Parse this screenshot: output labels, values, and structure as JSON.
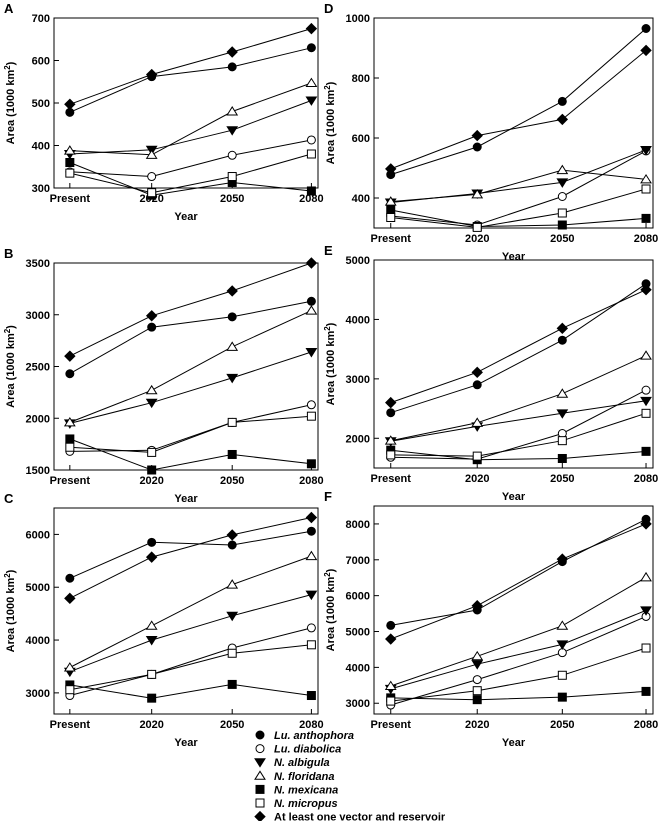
{
  "chart_data": [
    {
      "panel": "A",
      "type": "line",
      "x": [
        "Present",
        "2020",
        "2050",
        "2080"
      ],
      "xlabel": "Year",
      "ylabel": "Area (1000 km",
      "ylabel_sup": "2",
      "ylabel_end": ")",
      "ylim": [
        300,
        700
      ],
      "yticks": [
        300,
        400,
        500,
        600,
        700
      ],
      "series": [
        {
          "name": "Lu. anthophora",
          "values": [
            478,
            562,
            585,
            630
          ]
        },
        {
          "name": "Lu. diabolica",
          "values": [
            338,
            327,
            377,
            413
          ]
        },
        {
          "name": "N. albigula",
          "values": [
            380,
            390,
            436,
            506
          ]
        },
        {
          "name": "N. floridana",
          "values": [
            388,
            378,
            480,
            547
          ]
        },
        {
          "name": "N. mexicana",
          "values": [
            360,
            283,
            313,
            293
          ]
        },
        {
          "name": "N. micropus",
          "values": [
            335,
            289,
            327,
            380
          ]
        },
        {
          "name": "At least one vector and reservoir",
          "values": [
            497,
            567,
            620,
            675
          ]
        }
      ]
    },
    {
      "panel": "B",
      "type": "line",
      "x": [
        "Present",
        "2020",
        "2050",
        "2080"
      ],
      "xlabel": "Year",
      "ylabel": "Area (1000 km",
      "ylabel_sup": "2",
      "ylabel_end": ")",
      "ylim": [
        1500,
        3500
      ],
      "yticks": [
        1500,
        2000,
        2500,
        3000,
        3500
      ],
      "series": [
        {
          "name": "Lu. anthophora",
          "values": [
            2430,
            2880,
            2980,
            3130
          ]
        },
        {
          "name": "Lu. diabolica",
          "values": [
            1680,
            1690,
            1960,
            2130
          ]
        },
        {
          "name": "N. albigula",
          "values": [
            1950,
            2150,
            2390,
            2640
          ]
        },
        {
          "name": "N. floridana",
          "values": [
            1960,
            2270,
            2690,
            3040
          ]
        },
        {
          "name": "N. mexicana",
          "values": [
            1800,
            1500,
            1650,
            1560
          ]
        },
        {
          "name": "N. micropus",
          "values": [
            1720,
            1670,
            1960,
            2020
          ]
        },
        {
          "name": "At least one vector and reservoir",
          "values": [
            2600,
            2990,
            3230,
            3500
          ]
        }
      ]
    },
    {
      "panel": "C",
      "type": "line",
      "x": [
        "Present",
        "2020",
        "2050",
        "2080"
      ],
      "xlabel": "Year",
      "ylabel": "Area (1000 km",
      "ylabel_sup": "2",
      "ylabel_end": ")",
      "ylim": [
        2600,
        6500
      ],
      "yticks": [
        3000,
        4000,
        5000,
        6000
      ],
      "series": [
        {
          "name": "Lu. anthophora",
          "values": [
            5170,
            5850,
            5800,
            6060
          ]
        },
        {
          "name": "Lu. diabolica",
          "values": [
            2950,
            3350,
            3850,
            4230
          ]
        },
        {
          "name": "N. albigula",
          "values": [
            3400,
            4000,
            4460,
            4860
          ]
        },
        {
          "name": "N. floridana",
          "values": [
            3480,
            4270,
            5050,
            5590
          ]
        },
        {
          "name": "N. mexicana",
          "values": [
            3150,
            2900,
            3160,
            2950
          ]
        },
        {
          "name": "N. micropus",
          "values": [
            3060,
            3350,
            3750,
            3910
          ]
        },
        {
          "name": "At least one vector and reservoir",
          "values": [
            4790,
            5570,
            5990,
            6320
          ]
        }
      ]
    },
    {
      "panel": "D",
      "type": "line",
      "x": [
        "Present",
        "2020",
        "2050",
        "2080"
      ],
      "xlabel": "Year",
      "ylabel": "Area (1000 km",
      "ylabel_sup": "2",
      "ylabel_end": ")",
      "ylim": [
        300,
        1000
      ],
      "yticks": [
        400,
        600,
        800,
        1000
      ],
      "series": [
        {
          "name": "Lu. anthophora",
          "values": [
            478,
            570,
            722,
            965
          ]
        },
        {
          "name": "Lu. diabolica",
          "values": [
            340,
            310,
            405,
            557
          ]
        },
        {
          "name": "N. albigula",
          "values": [
            385,
            415,
            452,
            560
          ]
        },
        {
          "name": "N. floridana",
          "values": [
            388,
            412,
            493,
            462
          ]
        },
        {
          "name": "N. mexicana",
          "values": [
            360,
            305,
            310,
            332
          ]
        },
        {
          "name": "N. micropus",
          "values": [
            335,
            302,
            350,
            430
          ]
        },
        {
          "name": "At least one vector and reservoir",
          "values": [
            497,
            608,
            662,
            892
          ]
        }
      ]
    },
    {
      "panel": "E",
      "type": "line",
      "x": [
        "Present",
        "2020",
        "2050",
        "2080"
      ],
      "xlabel": "Year",
      "ylabel": "Area (1000 km",
      "ylabel_sup": "2",
      "ylabel_end": ")",
      "ylim": [
        1500,
        5000
      ],
      "yticks": [
        2000,
        3000,
        4000,
        5000
      ],
      "series": [
        {
          "name": "Lu. anthophora",
          "values": [
            2430,
            2900,
            3650,
            4600
          ]
        },
        {
          "name": "Lu. diabolica",
          "values": [
            1680,
            1650,
            2080,
            2810
          ]
        },
        {
          "name": "N. albigula",
          "values": [
            1950,
            2200,
            2420,
            2630
          ]
        },
        {
          "name": "N. floridana",
          "values": [
            1960,
            2260,
            2750,
            3390
          ]
        },
        {
          "name": "N. mexicana",
          "values": [
            1800,
            1640,
            1660,
            1780
          ]
        },
        {
          "name": "N. micropus",
          "values": [
            1720,
            1700,
            1960,
            2420
          ]
        },
        {
          "name": "At least one vector and reservoir",
          "values": [
            2600,
            3110,
            3850,
            4500
          ]
        }
      ]
    },
    {
      "panel": "F",
      "type": "line",
      "x": [
        "Present",
        "2020",
        "2050",
        "2080"
      ],
      "xlabel": "Year",
      "ylabel": "Area (1000 km",
      "ylabel_sup": "2",
      "ylabel_end": ")",
      "ylim": [
        2700,
        8500
      ],
      "yticks": [
        3000,
        4000,
        5000,
        6000,
        7000,
        8000
      ],
      "series": [
        {
          "name": "Lu. anthophora",
          "values": [
            5170,
            5600,
            6950,
            8130
          ]
        },
        {
          "name": "Lu. diabolica",
          "values": [
            2950,
            3660,
            4410,
            5420
          ]
        },
        {
          "name": "N. albigula",
          "values": [
            3400,
            4090,
            4640,
            5590
          ]
        },
        {
          "name": "N. floridana",
          "values": [
            3480,
            4310,
            5160,
            6510
          ]
        },
        {
          "name": "N. mexicana",
          "values": [
            3150,
            3100,
            3170,
            3330
          ]
        },
        {
          "name": "N. micropus",
          "values": [
            3060,
            3350,
            3780,
            4540
          ]
        },
        {
          "name": "At least one vector and reservoir",
          "values": [
            4790,
            5720,
            7020,
            8000
          ]
        }
      ]
    }
  ],
  "legend": [
    {
      "name": "Lu. anthophora",
      "marker": "circle-filled",
      "italic": true
    },
    {
      "name": "Lu. diabolica",
      "marker": "circle-open",
      "italic": true
    },
    {
      "name": "N. albigula",
      "marker": "triangle-down-filled",
      "italic": true
    },
    {
      "name": "N. floridana",
      "marker": "triangle-up-open",
      "italic": true
    },
    {
      "name": "N. mexicana",
      "marker": "square-filled",
      "italic": true
    },
    {
      "name": "N. micropus",
      "marker": "square-open",
      "italic": true
    },
    {
      "name": "At least one vector and reservoir",
      "marker": "diamond-filled",
      "italic": false
    }
  ]
}
